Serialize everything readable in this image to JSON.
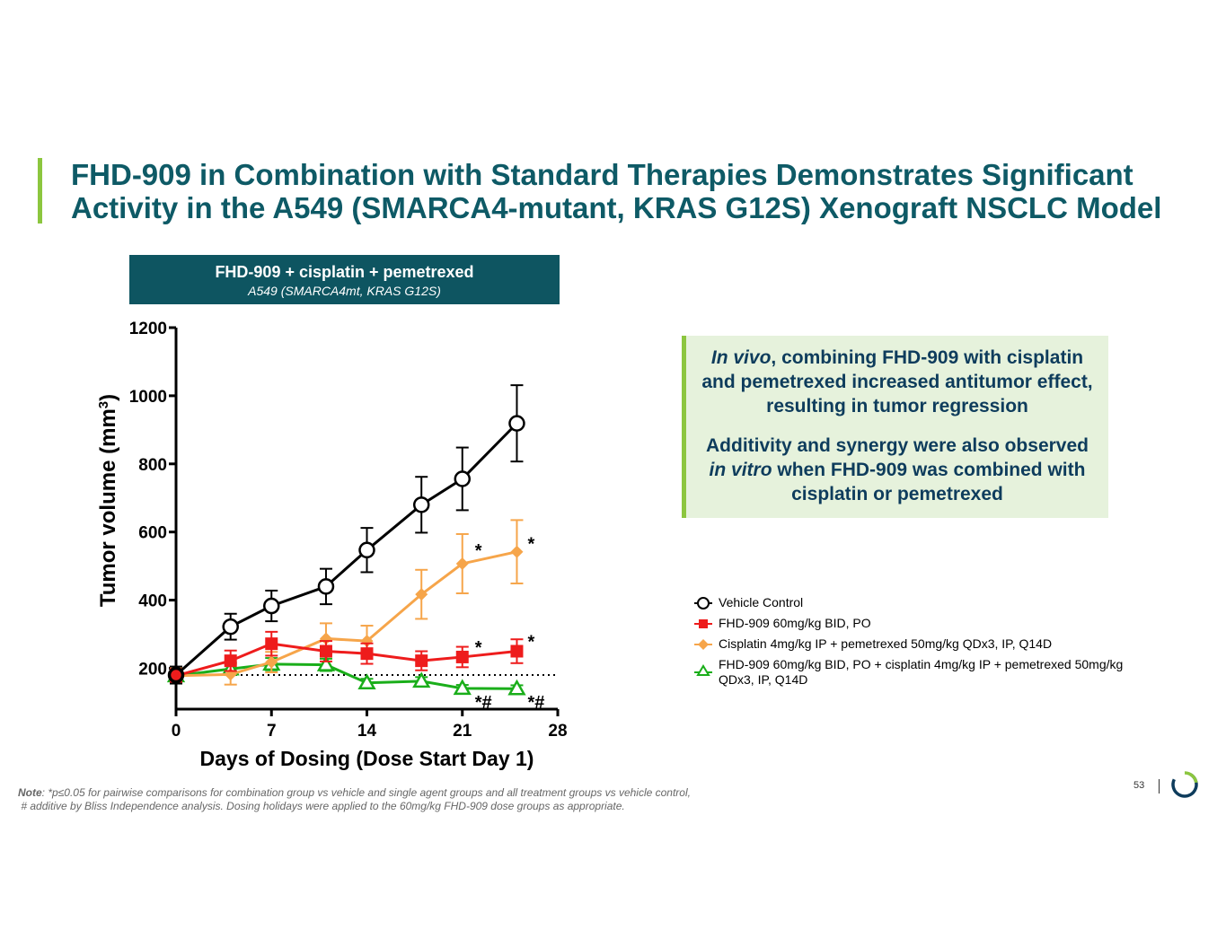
{
  "title": {
    "line1": "FHD-909 in Combination with Standard Therapies Demonstrates Significant",
    "line2": "Activity in the A549 (SMARCA4-mutant, KRAS G12S) Xenograft NSCLC Model"
  },
  "chart_header": {
    "title": "FHD-909 + cisplatin + pemetrexed",
    "subtitle": "A549 (SMARCA4mt, KRAS G12S)"
  },
  "callout": {
    "p1_italic": "In vivo",
    "p1_rest": ", combining FHD-909 with cisplatin and pemetrexed increased antitumor effect, resulting in tumor regression",
    "p2_a": "Additivity and synergy were also observed ",
    "p2_italic": "in vitro",
    "p2_b": " when FHD-909 was combined with cisplatin or pemetrexed"
  },
  "chart_data": {
    "type": "line",
    "xlabel": "Days of Dosing (Dose Start Day 1)",
    "ylabel": "Tumor volume (mm",
    "ylabel_sup": "3",
    "ylabel_close": ")",
    "xlim": [
      0,
      28
    ],
    "ylim": [
      80,
      1200
    ],
    "xticks": [
      0,
      7,
      14,
      21,
      28
    ],
    "yticks": [
      200,
      400,
      600,
      800,
      1000,
      1200
    ],
    "baseline": 180,
    "series": [
      {
        "name": "Vehicle Control",
        "color": "#000000",
        "marker": "circle",
        "x": [
          0,
          4,
          7,
          11,
          14,
          18,
          21,
          25
        ],
        "y": [
          180,
          322,
          383,
          440,
          547,
          680,
          756,
          919
        ],
        "err": [
          25,
          38,
          45,
          52,
          65,
          82,
          92,
          112
        ],
        "annotations": []
      },
      {
        "name": "FHD-909 60mg/kg BID, PO",
        "color": "#ee1c1c",
        "marker": "square",
        "x": [
          0,
          4,
          7,
          11,
          14,
          18,
          21,
          25
        ],
        "y": [
          178,
          222,
          272,
          250,
          243,
          222,
          233,
          250
        ],
        "err": [
          20,
          30,
          35,
          30,
          30,
          28,
          30,
          35
        ],
        "annotations": [
          {
            "x": 21,
            "text": "*"
          },
          {
            "x": 25,
            "text": "*"
          }
        ]
      },
      {
        "name": "Cisplatin 4mg/kg IP + pemetrexed 50mg/kg QDx3, IP, Q14D",
        "color": "#f6a54a",
        "marker": "diamond",
        "x": [
          0,
          4,
          7,
          11,
          14,
          18,
          21,
          25
        ],
        "y": [
          178,
          182,
          218,
          287,
          280,
          417,
          507,
          542
        ],
        "err": [
          22,
          30,
          30,
          45,
          45,
          72,
          87,
          93
        ],
        "annotations": [
          {
            "x": 21,
            "text": "*"
          },
          {
            "x": 25,
            "text": "*"
          }
        ]
      },
      {
        "name": "FHD-909 60mg/kg BID, PO + cisplatin 4mg/kg IP + pemetrexed 50mg/kg QDx3, IP, Q14D",
        "color": "#1aae1a",
        "marker": "triangle",
        "x": [
          0,
          4,
          7,
          11,
          14,
          18,
          21,
          25
        ],
        "y": [
          178,
          198,
          212,
          210,
          157,
          162,
          141,
          140
        ],
        "err": [
          15,
          18,
          18,
          18,
          12,
          12,
          10,
          10
        ],
        "annotations": [
          {
            "x": 21,
            "text": "*#"
          },
          {
            "x": 25,
            "text": "*#"
          }
        ]
      }
    ]
  },
  "legend": {
    "items": [
      "Vehicle Control",
      "FHD-909 60mg/kg BID, PO",
      "Cisplatin 4mg/kg IP + pemetrexed 50mg/kg QDx3, IP, Q14D",
      "FHD-909 60mg/kg BID, PO + cisplatin 4mg/kg IP + pemetrexed 50mg/kg QDx3, IP, Q14D"
    ]
  },
  "note": {
    "label": "Note",
    "line1": ": *p≤0.05 for pairwise comparisons for combination group vs vehicle and single agent groups and all treatment groups vs vehicle control,",
    "line2": "# additive by Bliss Independence analysis. Dosing holidays were applied to the 60mg/kg FHD-909 dose groups as appropriate."
  },
  "page_number": "53",
  "colors": {
    "title": "#0e5a66",
    "accent_green": "#8cc63f",
    "header_bg": "#0e5561",
    "callout_bg": "#e6f2dc",
    "callout_text": "#0e3c5c"
  }
}
